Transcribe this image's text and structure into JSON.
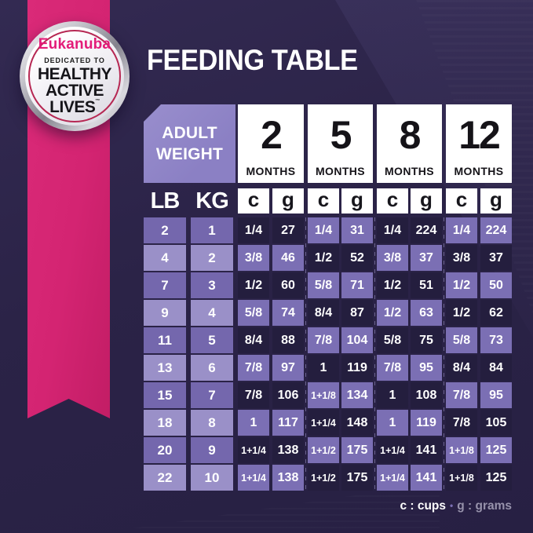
{
  "badge": {
    "brand": "Eukanuba",
    "tagline_top": "DEDICATED TO",
    "tagline_lines": [
      "HEALTHY",
      "ACTIVE",
      "LIVES"
    ],
    "trademark": "™"
  },
  "title": "FEEDING TABLE",
  "table": {
    "corner": {
      "line1": "ADULT",
      "line2": "WEIGHT"
    },
    "unit_headers": [
      "LB",
      "KG"
    ],
    "months": [
      {
        "number": "2",
        "label": "MONTHS"
      },
      {
        "number": "5",
        "label": "MONTHS"
      },
      {
        "number": "8",
        "label": "MONTHS"
      },
      {
        "number": "12",
        "label": "MONTHS"
      }
    ],
    "column_units": [
      "c",
      "g",
      "c",
      "g",
      "c",
      "g",
      "c",
      "g"
    ],
    "rows": [
      {
        "lb": "2",
        "kg": "1",
        "values": [
          "1/4",
          "27",
          "1/4",
          "31",
          "1/4",
          "224",
          "1/4",
          "224"
        ]
      },
      {
        "lb": "4",
        "kg": "2",
        "values": [
          "3/8",
          "46",
          "1/2",
          "52",
          "3/8",
          "37",
          "3/8",
          "37"
        ]
      },
      {
        "lb": "7",
        "kg": "3",
        "values": [
          "1/2",
          "60",
          "5/8",
          "71",
          "1/2",
          "51",
          "1/2",
          "50"
        ]
      },
      {
        "lb": "9",
        "kg": "4",
        "values": [
          "5/8",
          "74",
          "8/4",
          "87",
          "1/2",
          "63",
          "1/2",
          "62"
        ]
      },
      {
        "lb": "11",
        "kg": "5",
        "values": [
          "8/4",
          "88",
          "7/8",
          "104",
          "5/8",
          "75",
          "5/8",
          "73"
        ]
      },
      {
        "lb": "13",
        "kg": "6",
        "values": [
          "7/8",
          "97",
          "1",
          "119",
          "7/8",
          "95",
          "8/4",
          "84"
        ]
      },
      {
        "lb": "15",
        "kg": "7",
        "values": [
          "7/8",
          "106",
          "1+1/8",
          "134",
          "1",
          "108",
          "7/8",
          "95"
        ]
      },
      {
        "lb": "18",
        "kg": "8",
        "values": [
          "1",
          "117",
          "1+1/4",
          "148",
          "1",
          "119",
          "7/8",
          "105"
        ]
      },
      {
        "lb": "20",
        "kg": "9",
        "values": [
          "1+1/4",
          "138",
          "1+1/2",
          "175",
          "1+1/4",
          "141",
          "1+1/8",
          "125"
        ]
      },
      {
        "lb": "22",
        "kg": "10",
        "values": [
          "1+1/4",
          "138",
          "1+1/2",
          "175",
          "1+1/4",
          "141",
          "1+1/8",
          "125"
        ]
      }
    ]
  },
  "legend": {
    "cups": "c : cups",
    "separator": "•",
    "grams": "g : grams"
  },
  "colors": {
    "background": "#2c2548",
    "cell_dark": "#241e3e",
    "cell_purple": "#7b6fb4",
    "row_medium": "#7467ad",
    "row_light": "#9a90c8",
    "corner_header": "#8b80c4",
    "ribbon_pink": "#d42472",
    "brand_pink": "#e31c79"
  }
}
